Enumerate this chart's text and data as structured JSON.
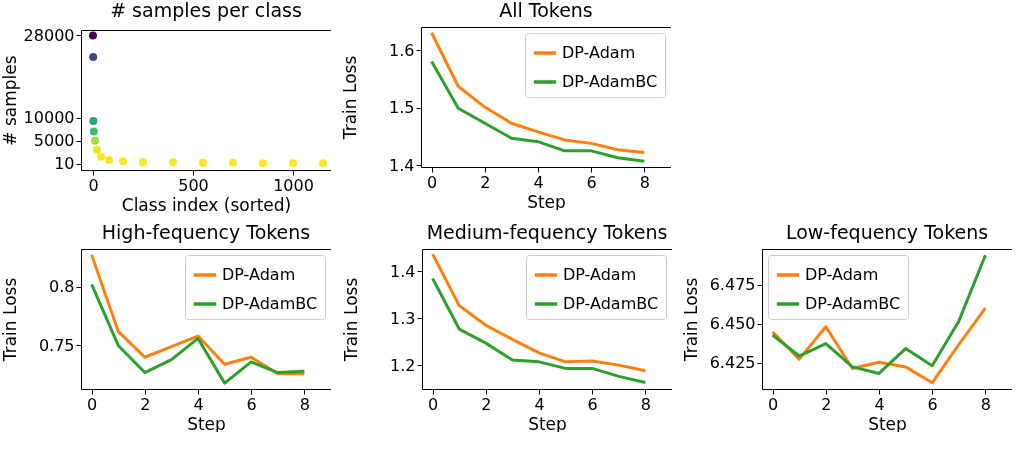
{
  "chart_data": [
    {
      "type": "scatter",
      "title": "# samples per class",
      "xlabel": "Class index (sorted)",
      "ylabel": "# samples",
      "marker": "circle",
      "xlim": [
        -60,
        1190
      ],
      "xticks": [
        0,
        500,
        1000
      ],
      "ylim": [
        -1400,
        29200
      ],
      "yticks": [
        10,
        5000,
        10000,
        28000
      ],
      "series": [
        {
          "x": [
            0,
            1,
            2,
            4,
            10,
            20,
            40,
            80,
            150,
            250,
            400,
            550,
            700,
            850,
            1000,
            1150
          ],
          "values": [
            28000,
            23300,
            9300,
            7000,
            5000,
            3000,
            1500,
            800,
            500,
            300,
            300,
            200,
            200,
            100,
            100,
            100
          ],
          "colors": [
            "#440154",
            "#414487",
            "#22a884",
            "#3bbb75",
            "#a5db36",
            "#f0e51c",
            "#fde725",
            "#fde725",
            "#fde725",
            "#fde725",
            "#fde725",
            "#fde725",
            "#fde725",
            "#fde725",
            "#fde725",
            "#fde725"
          ]
        }
      ]
    },
    {
      "type": "line",
      "title": "All Tokens",
      "xlabel": "Step",
      "ylabel": "Train Loss",
      "legend": "top right",
      "x": [
        0,
        1,
        2,
        3,
        4,
        5,
        6,
        7,
        8
      ],
      "xlim": [
        -0.4,
        9
      ],
      "xticks": [
        0,
        2,
        4,
        6,
        8
      ],
      "ylim": [
        1.397,
        1.64
      ],
      "yticks": [
        1.4,
        1.5,
        1.6
      ],
      "series": [
        {
          "name": "DP-Adam",
          "color": "#ff7f0e",
          "values": [
            1.63,
            1.537,
            1.501,
            1.473,
            1.458,
            1.444,
            1.438,
            1.427,
            1.422
          ]
        },
        {
          "name": "DP-AdamBC",
          "color": "#2ca02c",
          "values": [
            1.58,
            1.499,
            1.473,
            1.447,
            1.441,
            1.425,
            1.425,
            1.413,
            1.407
          ]
        }
      ]
    },
    {
      "type": "line",
      "title": "High-fequency Tokens",
      "xlabel": "Step",
      "ylabel": "Train Loss",
      "legend": "top right",
      "x": [
        0,
        1,
        2,
        3,
        4,
        5,
        6,
        7,
        8
      ],
      "xlim": [
        -0.4,
        9
      ],
      "xticks": [
        0,
        2,
        4,
        6,
        8
      ],
      "ylim": [
        0.713,
        0.832
      ],
      "yticks": [
        0.75,
        0.8
      ],
      "series": [
        {
          "name": "DP-Adam",
          "color": "#ff7f0e",
          "values": [
            0.827,
            0.762,
            0.74,
            0.749,
            0.758,
            0.734,
            0.74,
            0.726,
            0.726
          ]
        },
        {
          "name": "DP-AdamBC",
          "color": "#2ca02c",
          "values": [
            0.802,
            0.75,
            0.727,
            0.738,
            0.756,
            0.718,
            0.736,
            0.727,
            0.728
          ]
        }
      ]
    },
    {
      "type": "line",
      "title": "Medium-fequency Tokens",
      "xlabel": "Step",
      "ylabel": "Train Loss",
      "legend": "top right",
      "x": [
        0,
        1,
        2,
        3,
        4,
        5,
        6,
        7,
        8
      ],
      "xlim": [
        -0.4,
        9
      ],
      "xticks": [
        0,
        2,
        4,
        6,
        8
      ],
      "ylim": [
        1.149,
        1.448
      ],
      "yticks": [
        1.2,
        1.3,
        1.4
      ],
      "series": [
        {
          "name": "DP-Adam",
          "color": "#ff7f0e",
          "values": [
            1.437,
            1.327,
            1.285,
            1.255,
            1.226,
            1.207,
            1.209,
            1.2,
            1.188
          ]
        },
        {
          "name": "DP-AdamBC",
          "color": "#2ca02c",
          "values": [
            1.385,
            1.277,
            1.247,
            1.211,
            1.207,
            1.193,
            1.193,
            1.176,
            1.163
          ]
        }
      ]
    },
    {
      "type": "line",
      "title": "Low-fequency Tokens",
      "xlabel": "Step",
      "ylabel": "Train Loss",
      "legend": "top left",
      "x": [
        0,
        1,
        2,
        3,
        4,
        5,
        6,
        7,
        8
      ],
      "xlim": [
        -0.4,
        9
      ],
      "xticks": [
        0,
        2,
        4,
        6,
        8
      ],
      "ylim": [
        6.408,
        6.498
      ],
      "yticks": [
        6.425,
        {
          "value": 6.45,
          "label": "6.450"
        },
        6.475
      ],
      "series": [
        {
          "name": "DP-Adam",
          "color": "#ff7f0e",
          "values": [
            6.4446,
            6.4272,
            6.448,
            6.4212,
            6.4252,
            6.4222,
            6.412,
            6.4366,
            6.46
          ]
        },
        {
          "name": "DP-AdamBC",
          "color": "#2ca02c",
          "values": [
            6.4426,
            6.4292,
            6.4372,
            6.4222,
            6.418,
            6.434,
            6.423,
            6.4516,
            6.494
          ]
        }
      ]
    }
  ]
}
